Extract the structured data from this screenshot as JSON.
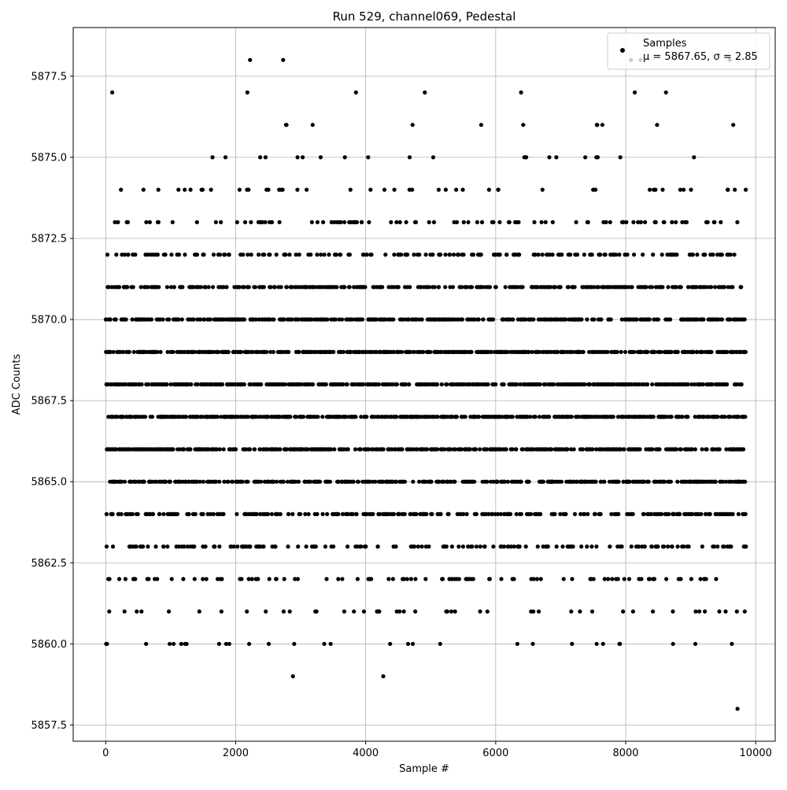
{
  "chart_data": {
    "type": "scatter",
    "title": "Run 529, channel069, Pedestal",
    "xlabel": "Sample #",
    "ylabel": "ADC Counts",
    "xlim": [
      -500,
      10300
    ],
    "ylim": [
      5857.0,
      5879.0
    ],
    "x_ticks": [
      0,
      2000,
      4000,
      6000,
      8000,
      10000
    ],
    "x_tick_labels": [
      "0",
      "2000",
      "4000",
      "6000",
      "8000",
      "10000"
    ],
    "y_ticks": [
      5857.5,
      5860.0,
      5862.5,
      5865.0,
      5867.5,
      5870.0,
      5872.5,
      5875.0,
      5877.5
    ],
    "y_tick_labels": [
      "5857.5",
      "5860.0",
      "5862.5",
      "5865.0",
      "5867.5",
      "5870.0",
      "5872.5",
      "5875.0",
      "5877.5"
    ],
    "grid": true,
    "legend": {
      "placement": "top-right",
      "entry_name": "Samples",
      "entry_stats": "μ = 5867.65, σ = 2.85"
    },
    "series": [
      {
        "name": "Samples",
        "color": "#000000",
        "x_range": [
          0,
          9850
        ],
        "n_samples": 9850,
        "mean": 5867.65,
        "std": 2.85,
        "value_levels": [
          5858,
          5859,
          5860,
          5861,
          5862,
          5863,
          5864,
          5865,
          5866,
          5867,
          5868,
          5869,
          5870,
          5871,
          5872,
          5873,
          5874,
          5875,
          5876,
          5877,
          5878
        ],
        "outliers": [
          {
            "x": 9720,
            "y": 5858
          },
          {
            "x": 2880,
            "y": 5859
          },
          {
            "x": 4270,
            "y": 5859
          },
          {
            "x": 2220,
            "y": 5878
          },
          {
            "x": 2730,
            "y": 5878
          },
          {
            "x": 8080,
            "y": 5878
          },
          {
            "x": 8230,
            "y": 5878
          },
          {
            "x": 9600,
            "y": 5878
          },
          {
            "x": 100,
            "y": 5877
          },
          {
            "x": 2180,
            "y": 5877
          },
          {
            "x": 3850,
            "y": 5877
          },
          {
            "x": 4910,
            "y": 5877
          },
          {
            "x": 6390,
            "y": 5877
          },
          {
            "x": 8140,
            "y": 5877
          },
          {
            "x": 8620,
            "y": 5877
          }
        ]
      }
    ]
  }
}
